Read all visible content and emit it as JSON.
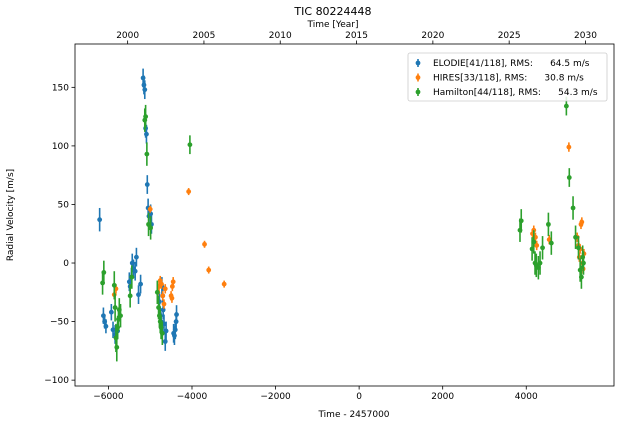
{
  "chart_data": {
    "type": "scatter",
    "title": "TIC 80224448",
    "xlabel": "Time - 2457000",
    "ylabel": "Radial Velocity [m/s]",
    "top_xlabel": "Time [Year]",
    "xlim": [
      -6800,
      6100
    ],
    "ylim": [
      -105,
      187
    ],
    "xticks": [
      -6000,
      -4000,
      -2000,
      0,
      2000,
      4000
    ],
    "yticks": [
      -100,
      -50,
      0,
      50,
      100,
      150
    ],
    "top_xticks": [
      {
        "year": 2000,
        "x": -5540
      },
      {
        "year": 2005,
        "x": -3714
      },
      {
        "year": 2010,
        "x": -1888
      },
      {
        "year": 2015,
        "x": -61
      },
      {
        "year": 2020,
        "x": 1765
      },
      {
        "year": 2025,
        "x": 3591
      },
      {
        "year": 2030,
        "x": 5418
      }
    ],
    "legend_position": "top-right",
    "series": [
      {
        "name": "ELODIE[41/118], RMS:      64.5 m/s",
        "color": "#1f77b4",
        "points": [
          [
            -6210,
            37,
            10
          ],
          [
            -6120,
            -45,
            7
          ],
          [
            -6090,
            -50,
            6
          ],
          [
            -6060,
            -54,
            6
          ],
          [
            -5930,
            -42,
            7
          ],
          [
            -5890,
            -57,
            7
          ],
          [
            -5840,
            -61,
            8
          ],
          [
            -5780,
            -58,
            7
          ],
          [
            -5480,
            -20,
            8
          ],
          [
            -5450,
            -12,
            8
          ],
          [
            -5430,
            0,
            8
          ],
          [
            -5400,
            -5,
            8
          ],
          [
            -5360,
            -7,
            8
          ],
          [
            -5330,
            5,
            8
          ],
          [
            -5280,
            -27,
            8
          ],
          [
            -5230,
            -18,
            8
          ],
          [
            -5170,
            158,
            8
          ],
          [
            -5150,
            152,
            8
          ],
          [
            -5130,
            148,
            8
          ],
          [
            -5110,
            115,
            8
          ],
          [
            -5090,
            110,
            8
          ],
          [
            -5070,
            67,
            8
          ],
          [
            -5050,
            47,
            8
          ],
          [
            -5030,
            40,
            8
          ],
          [
            -4990,
            42,
            8
          ],
          [
            -4970,
            33,
            8
          ],
          [
            -4780,
            -33,
            8
          ],
          [
            -4760,
            -45,
            8
          ],
          [
            -4740,
            -50,
            8
          ],
          [
            -4720,
            -20,
            8
          ],
          [
            -4690,
            -40,
            8
          ],
          [
            -4670,
            -52,
            8
          ],
          [
            -4640,
            -67,
            8
          ],
          [
            -4620,
            -58,
            8
          ],
          [
            -4440,
            -60,
            8
          ],
          [
            -4420,
            -62,
            8
          ],
          [
            -4400,
            -57,
            8
          ],
          [
            -4380,
            -50,
            8
          ],
          [
            -4370,
            -44,
            8
          ],
          [
            -4700,
            -28,
            8
          ],
          [
            -5500,
            -16,
            8
          ]
        ]
      },
      {
        "name": "HIRES[33/118], RMS:      30.8 m/s",
        "color": "#ff7f0e",
        "points": [
          [
            -5860,
            -27,
            4
          ],
          [
            -5820,
            -22,
            4
          ],
          [
            -5000,
            46,
            3
          ],
          [
            -4820,
            -25,
            4
          ],
          [
            -4790,
            -20,
            4
          ],
          [
            -4760,
            -15,
            4
          ],
          [
            -4730,
            -18,
            4
          ],
          [
            -4700,
            -28,
            4
          ],
          [
            -4670,
            -35,
            4
          ],
          [
            -4640,
            -22,
            4
          ],
          [
            -4500,
            -28,
            4
          ],
          [
            -4480,
            -30,
            4
          ],
          [
            -4470,
            -20,
            4
          ],
          [
            -4450,
            -16,
            4
          ],
          [
            -4080,
            61,
            3
          ],
          [
            -3700,
            16,
            3
          ],
          [
            -3600,
            -6,
            3
          ],
          [
            -3230,
            -18,
            3
          ],
          [
            4150,
            25,
            4
          ],
          [
            4180,
            28,
            4
          ],
          [
            4220,
            22,
            4
          ],
          [
            4250,
            15,
            4
          ],
          [
            4550,
            20,
            4
          ],
          [
            5020,
            99,
            4
          ],
          [
            5220,
            22,
            4
          ],
          [
            5250,
            15,
            4
          ],
          [
            5270,
            5,
            4
          ],
          [
            5290,
            12,
            4
          ],
          [
            5310,
            33,
            4
          ],
          [
            5330,
            35,
            4
          ],
          [
            5350,
            0,
            4
          ],
          [
            5360,
            -5,
            4
          ],
          [
            5380,
            8,
            4
          ]
        ]
      },
      {
        "name": "Hamilton[44/118], RMS:      54.3 m/s",
        "color": "#2ca02c",
        "points": [
          [
            -6140,
            -17,
            10
          ],
          [
            -6110,
            -8,
            10
          ],
          [
            -5860,
            -19,
            12
          ],
          [
            -5840,
            -38,
            12
          ],
          [
            -5820,
            -64,
            12
          ],
          [
            -5800,
            -72,
            12
          ],
          [
            -5780,
            -55,
            10
          ],
          [
            -5760,
            -48,
            10
          ],
          [
            -5740,
            -40,
            10
          ],
          [
            -5710,
            -45,
            10
          ],
          [
            -5480,
            -28,
            10
          ],
          [
            -5440,
            -12,
            10
          ],
          [
            -5130,
            122,
            10
          ],
          [
            -5110,
            125,
            10
          ],
          [
            -5080,
            93,
            10
          ],
          [
            -5040,
            33,
            10
          ],
          [
            -4990,
            30,
            10
          ],
          [
            -4830,
            -25,
            10
          ],
          [
            -4800,
            -38,
            10
          ],
          [
            -4780,
            -45,
            10
          ],
          [
            -4760,
            -50,
            10
          ],
          [
            -4740,
            -55,
            10
          ],
          [
            -4710,
            -60,
            10
          ],
          [
            -4050,
            101,
            8
          ],
          [
            3850,
            28,
            10
          ],
          [
            3880,
            36,
            10
          ],
          [
            4140,
            12,
            10
          ],
          [
            4180,
            18,
            10
          ],
          [
            4210,
            0,
            10
          ],
          [
            4240,
            -2,
            10
          ],
          [
            4290,
            -4,
            10
          ],
          [
            4330,
            0,
            10
          ],
          [
            4390,
            13,
            10
          ],
          [
            4530,
            33,
            10
          ],
          [
            4600,
            17,
            10
          ],
          [
            4960,
            134,
            8
          ],
          [
            5030,
            73,
            8
          ],
          [
            5120,
            47,
            10
          ],
          [
            5180,
            22,
            10
          ],
          [
            5250,
            13,
            10
          ],
          [
            5290,
            -6,
            10
          ],
          [
            5320,
            -12,
            10
          ],
          [
            5350,
            5,
            10
          ],
          [
            5370,
            0,
            10
          ]
        ]
      }
    ]
  }
}
